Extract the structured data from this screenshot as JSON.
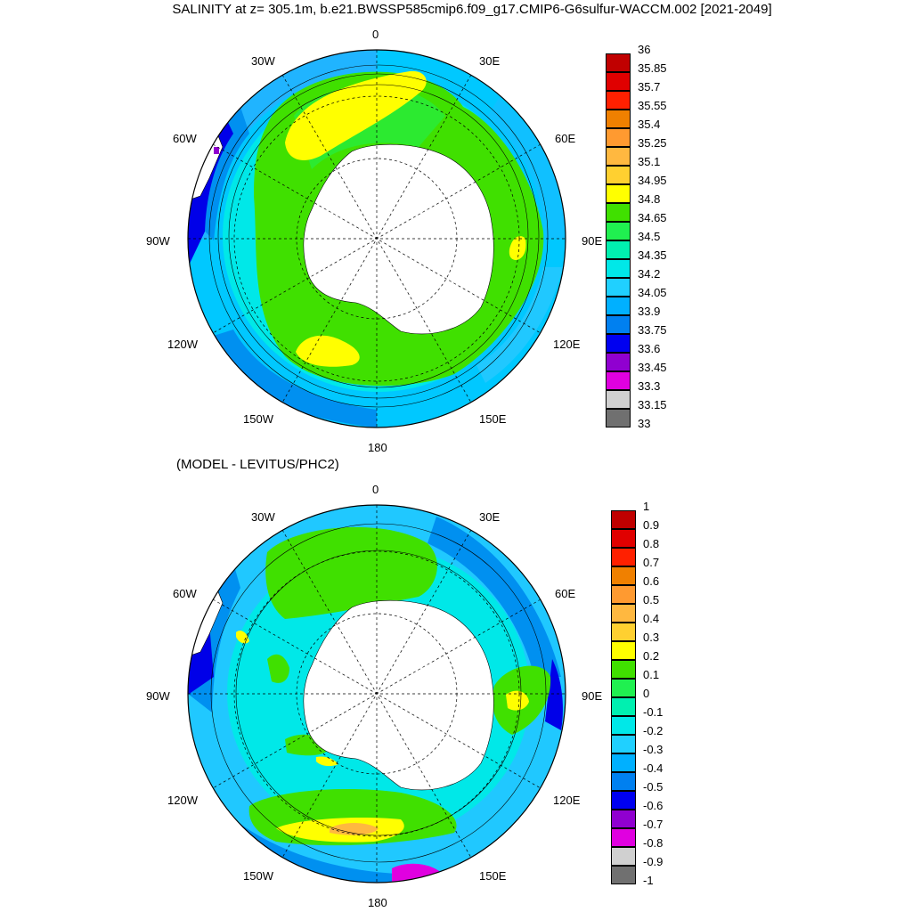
{
  "title": "SALINITY at z= 305.1m, b.e21.BWSSP585cmip6.f09_g17.CMIP6-G6sulfur-WACCM.002 [2021-2049]",
  "subtitle": "(MODEL - LEVITUS/PHC2)",
  "longitude_labels": [
    "0",
    "30E",
    "60E",
    "90E",
    "120E",
    "150E",
    "180",
    "150W",
    "120W",
    "90W",
    "60W",
    "30W"
  ],
  "panels": [
    {
      "name": "salinity",
      "colorbar": {
        "labels": [
          "36",
          "35.85",
          "35.7",
          "35.55",
          "35.4",
          "35.25",
          "35.1",
          "34.95",
          "34.8",
          "34.65",
          "34.5",
          "34.35",
          "34.2",
          "34.05",
          "33.9",
          "33.75",
          "33.6",
          "33.45",
          "33.3",
          "33.15",
          "33"
        ],
        "colors": [
          "#c00000",
          "#e00000",
          "#ff2000",
          "#f08000",
          "#ff9a30",
          "#ffb840",
          "#ffd030",
          "#ffff00",
          "#40e000",
          "#20f050",
          "#00f0b0",
          "#00e8e8",
          "#20d0ff",
          "#00b0ff",
          "#0080f0",
          "#0000f0",
          "#9000d0",
          "#e000e0",
          "#d0d0d0",
          "#707070"
        ]
      }
    },
    {
      "name": "difference",
      "colorbar": {
        "labels": [
          "1",
          "0.9",
          "0.8",
          "0.7",
          "0.6",
          "0.5",
          "0.4",
          "0.3",
          "0.2",
          "0.1",
          "0",
          "-0.1",
          "-0.2",
          "-0.3",
          "-0.4",
          "-0.5",
          "-0.6",
          "-0.7",
          "-0.8",
          "-0.9",
          "-1"
        ],
        "colors": [
          "#c00000",
          "#e00000",
          "#ff2000",
          "#f08000",
          "#ff9a30",
          "#ffb840",
          "#ffd030",
          "#ffff00",
          "#40e000",
          "#20f050",
          "#00f0b0",
          "#00e8e8",
          "#20d0ff",
          "#00b0ff",
          "#0080f0",
          "#0000f0",
          "#9000d0",
          "#e000e0",
          "#d0d0d0",
          "#707070"
        ]
      }
    }
  ]
}
